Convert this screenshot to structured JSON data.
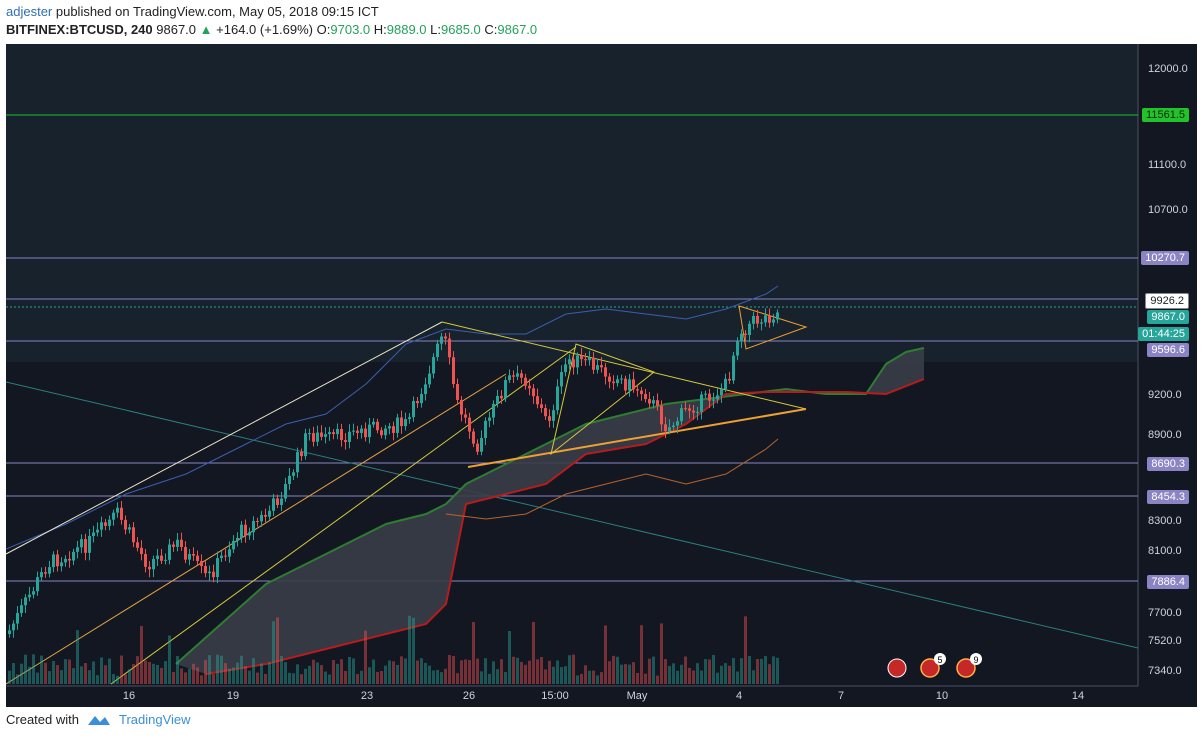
{
  "header": {
    "user": "adjester",
    "published": " published on TradingView.com, May 05, 2018 09:15 ICT",
    "symbol": "BITFINEX:BTCUSD, 240",
    "last": "9867.0",
    "change": "+164.0 (+1.69%)",
    "o_label": "O:",
    "o_value": "9703.0",
    "h_label": "H:",
    "h_value": "9889.0",
    "l_label": "L:",
    "l_value": "9685.0",
    "c_label": "C:",
    "c_value": "9867.0"
  },
  "price_axis": [
    "12000.0",
    "11100.0",
    "10700.0",
    "9200.0",
    "8900.0",
    "8300.0",
    "8100.0",
    "7700.0",
    "7520.0",
    "7340.0"
  ],
  "time_axis": [
    "16",
    "19",
    "23",
    "26",
    "15:00",
    "May",
    "4",
    "7",
    "10",
    "14"
  ],
  "price_tags": {
    "green": "11561.5",
    "purple1": "10270.7",
    "current_high": "9926.2",
    "current": "9867.0",
    "countdown": "01:44:25",
    "purple2": "9596.6",
    "purple3": "8690.3",
    "purple4": "8454.3",
    "purple5": "7886.4"
  },
  "events": [
    "5",
    "9"
  ],
  "footer": {
    "created": "Created with",
    "brand": "TradingView"
  },
  "colors": {
    "background": "#131722",
    "up": "#26a69a",
    "down": "#ef5350",
    "purple": "#8a84c4",
    "green_line": "#22c22a"
  }
}
